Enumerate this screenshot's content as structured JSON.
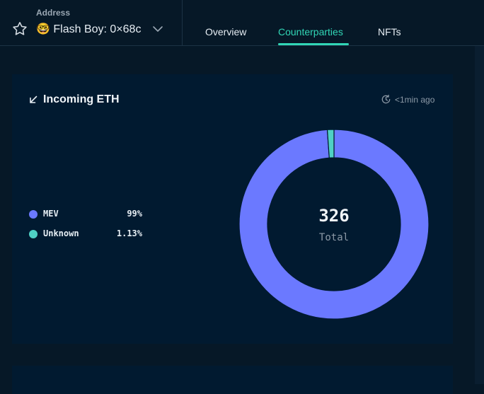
{
  "header": {
    "address_label": "Address",
    "address_emoji": "🤓",
    "address_name": "Flash Boy: 0×68c",
    "tabs": [
      {
        "label": "Overview",
        "active": false
      },
      {
        "label": "Counterparties",
        "active": true
      },
      {
        "label": "NFTs",
        "active": false
      }
    ],
    "accent_color": "#31d6b6"
  },
  "card": {
    "title": "Incoming ETH",
    "updated": "<1min ago",
    "legend": [
      {
        "name": "MEV",
        "value": "99%",
        "color": "#6b79ff"
      },
      {
        "name": "Unknown",
        "value": "1.13%",
        "color": "#4fd1c5"
      }
    ],
    "total_value": "326",
    "total_label": "Total"
  },
  "chart_data": {
    "type": "pie",
    "variant": "donut",
    "categories": [
      "MEV",
      "Unknown"
    ],
    "values": [
      99,
      1.13
    ],
    "colors": [
      "#6b79ff",
      "#4fd1c5"
    ],
    "center_value": "326",
    "center_label": "Total",
    "legend_position": "left"
  }
}
